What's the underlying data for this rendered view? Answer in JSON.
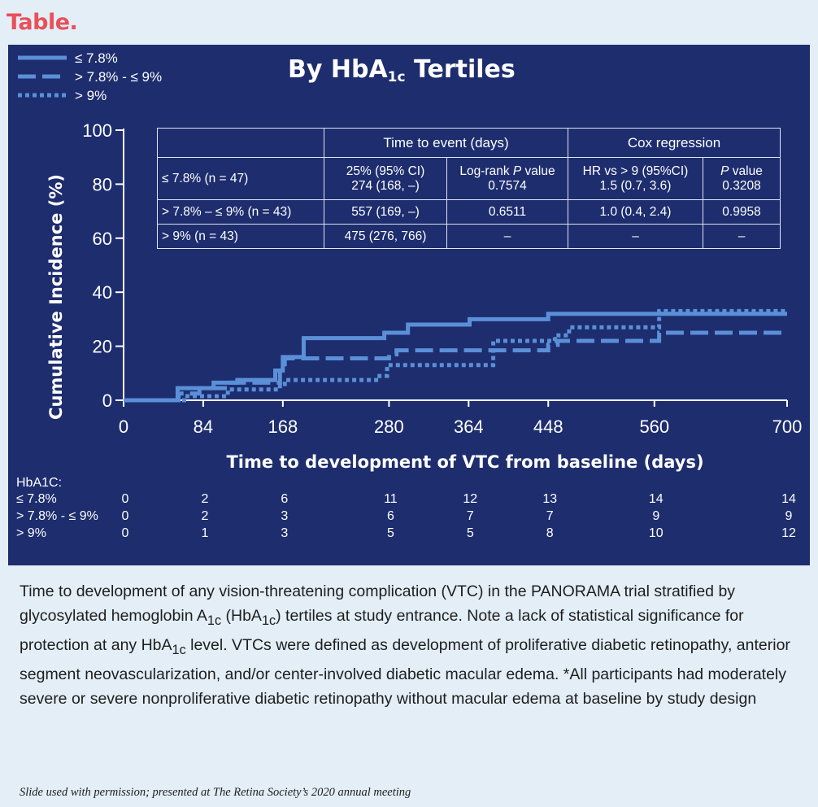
{
  "header": "Table.",
  "chart_data": {
    "type": "line",
    "step": true,
    "title": "By HbA1c Tertiles",
    "title_main": "By HbA",
    "title_sub": "1c",
    "title_tail": " Tertiles",
    "xlabel": "Time to development of VTC from baseline (days)",
    "ylabel": "Cumulative Incidence (%)",
    "xlim": [
      0,
      700
    ],
    "ylim": [
      0,
      100
    ],
    "xticks": [
      0,
      84,
      168,
      280,
      364,
      448,
      560,
      700
    ],
    "yticks": [
      0,
      20,
      40,
      60,
      80,
      100
    ],
    "legend_position": "top-left",
    "series": [
      {
        "name": "≤ 7.8%",
        "style": "solid",
        "x": [
          0,
          57,
          95,
          120,
          160,
          168,
          190,
          275,
          300,
          365,
          448,
          700
        ],
        "y": [
          0,
          4.5,
          6.5,
          7.5,
          11,
          16,
          23,
          25,
          28,
          30,
          32,
          32
        ]
      },
      {
        "name": "> 7.8% - ≤ 9%",
        "style": "dashed",
        "x": [
          0,
          58,
          80,
          110,
          165,
          170,
          280,
          288,
          380,
          448,
          458,
          555,
          565,
          700
        ],
        "y": [
          0,
          2.5,
          4.5,
          6.5,
          11,
          15.5,
          17,
          18.5,
          18.5,
          20.5,
          22,
          22,
          25,
          25
        ]
      },
      {
        "name": "> 9%",
        "style": "dotted",
        "x": [
          0,
          64,
          110,
          165,
          170,
          270,
          278,
          290,
          390,
          455,
          470,
          555,
          565,
          700
        ],
        "y": [
          0,
          1.5,
          4,
          6,
          7.5,
          9,
          13,
          13,
          22,
          24,
          27,
          27,
          33,
          33
        ]
      }
    ],
    "table": {
      "columns": {
        "time_group": "Time to event (days)",
        "time_pct": "25% (95% CI)",
        "logrank": "Log-rank",
        "p_italic": "P",
        "value_word": " value",
        "cox_group": "Cox regression",
        "hr": "HR vs > 9 (95%CI)"
      },
      "rows": [
        {
          "label": "≤ 7.8% (n = 47)",
          "t25": "274 (168, –)",
          "logrank_p": "0.7574",
          "hr": "1.5 (0.7, 3.6)",
          "cox_p": "0.3208"
        },
        {
          "label": "> 7.8% – ≤ 9% (n = 43)",
          "t25": "557 (169, –)",
          "logrank_p": "0.6511",
          "hr": "1.0 (0.4, 2.4)",
          "cox_p": "0.9958"
        },
        {
          "label": "> 9% (n = 43)",
          "t25": "475 (276, 766)",
          "logrank_p": "–",
          "hr": "–",
          "cox_p": "–"
        }
      ]
    },
    "risk_table": {
      "header": "HbA1C:",
      "times": [
        0,
        84,
        168,
        280,
        364,
        448,
        560,
        700
      ],
      "rows": [
        {
          "label": "≤ 7.8%",
          "values": [
            0,
            2,
            6,
            11,
            12,
            13,
            14,
            14
          ]
        },
        {
          "label": "> 7.8% - ≤ 9%",
          "values": [
            0,
            2,
            3,
            6,
            7,
            7,
            9,
            9
          ]
        },
        {
          "label": "> 9%",
          "values": [
            0,
            1,
            3,
            5,
            5,
            8,
            10,
            12
          ]
        }
      ]
    }
  },
  "colors": {
    "background": "#1d2d6e",
    "line": "#5b8fd8",
    "axis": "#ffffff",
    "header": "#e8505b"
  },
  "caption": {
    "p1": "Time to development of any vision-threatening complication (VTC) in the PANORAMA trial stratified by glycosylated hemoglobin A",
    "sub1": "1c",
    "p2": " (HbA",
    "sub2": "1c",
    "p3": ") tertiles at study entrance. Note a lack of statistical significance for protection at any HbA",
    "sub3": "1c",
    "p4": " level. VTCs were defined as development of proliferative diabetic retinopathy, anterior segment neovascularization, and/or center-involved diabetic macular edema. *All participants had moderately severe or severe nonproliferative diabetic retinopathy without macular edema at baseline by study design"
  },
  "credit": "Slide used with permission; presented at The Retina Society’s 2020 annual meeting"
}
